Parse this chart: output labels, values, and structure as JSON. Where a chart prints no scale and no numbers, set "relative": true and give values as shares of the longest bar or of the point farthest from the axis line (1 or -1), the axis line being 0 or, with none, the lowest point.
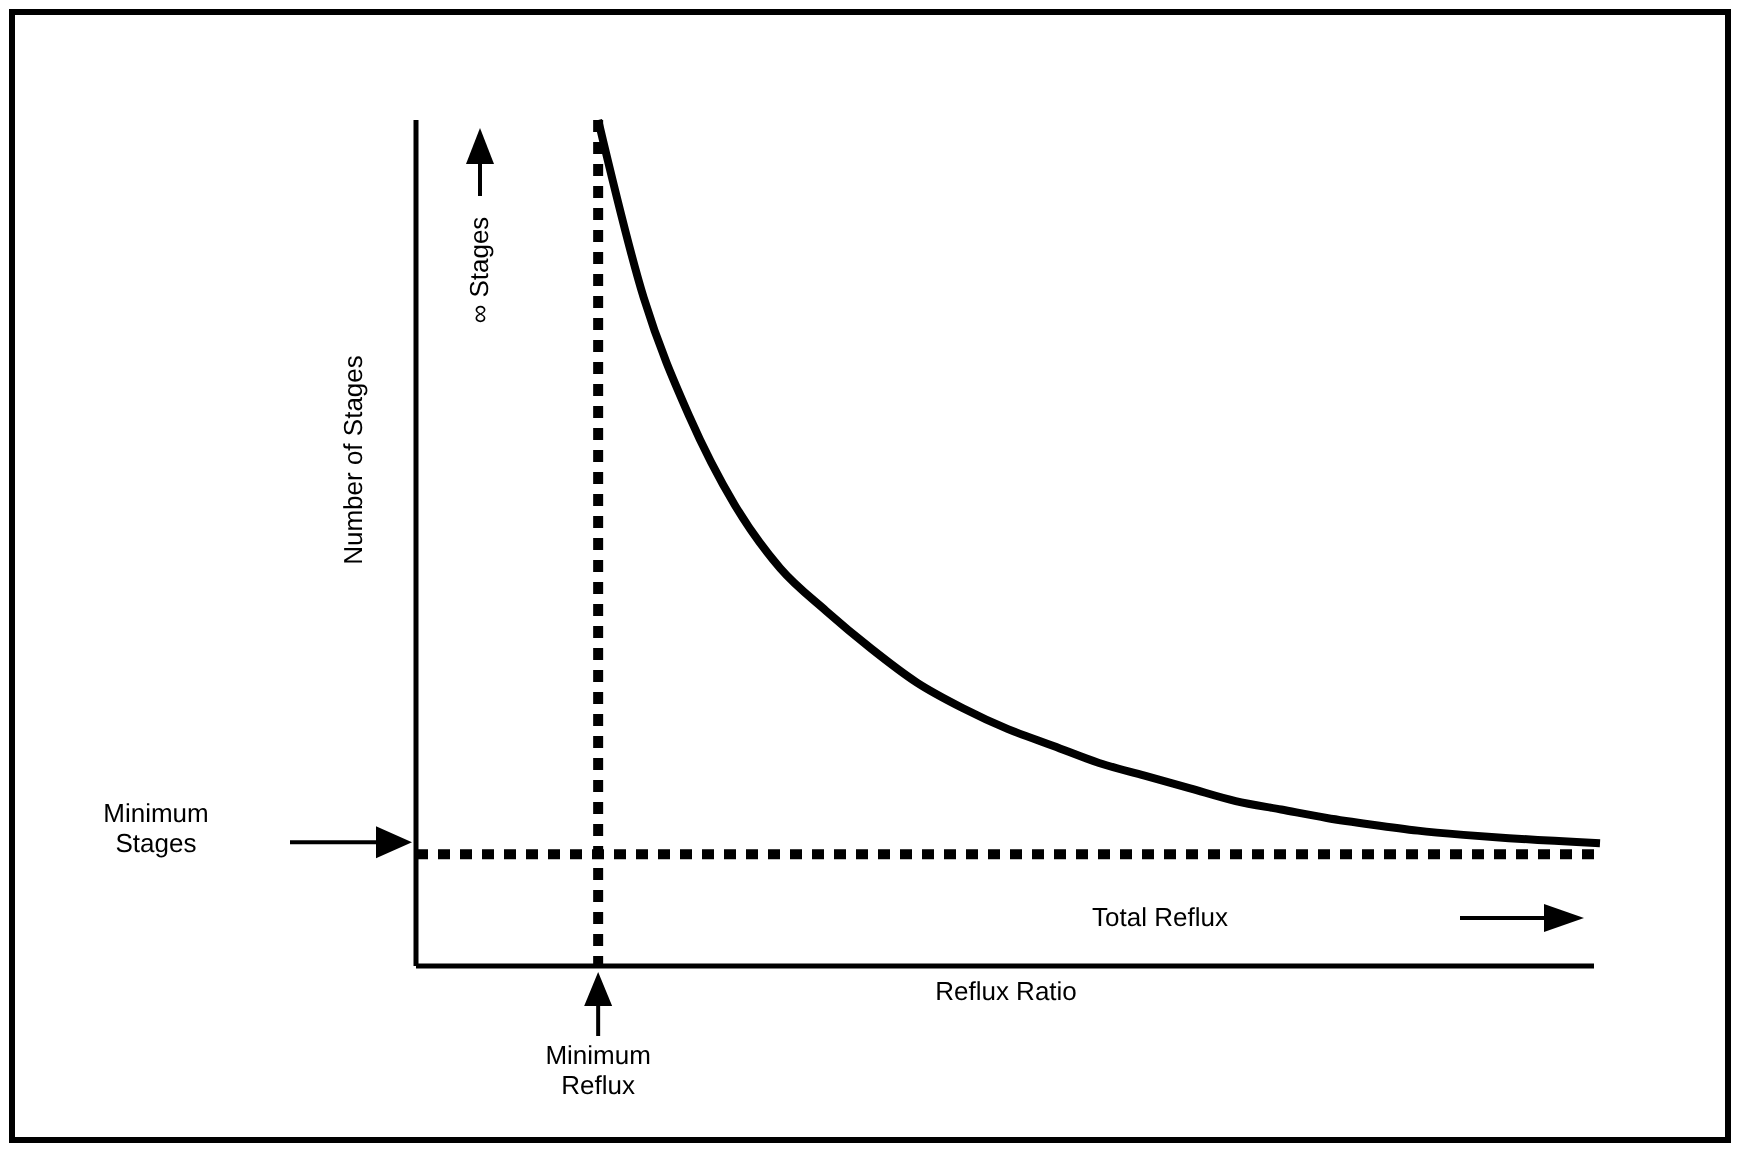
{
  "chart_data": {
    "type": "line",
    "relative": true,
    "xlabel": "Reflux Ratio",
    "ylabel": "Number of Stages",
    "categories": [
      null,
      null,
      null,
      null,
      null,
      null,
      null,
      null,
      null,
      null,
      null,
      null,
      null,
      null,
      null,
      null,
      null,
      null,
      null,
      null,
      null,
      null,
      null,
      null,
      null,
      null,
      null
    ],
    "series": [
      {
        "color": "#000000",
        "values": [
          null,
          null,
          null,
          null,
          1.0,
          0.79,
          0.65,
          0.545,
          0.47,
          0.42,
          0.375,
          0.335,
          0.305,
          0.28,
          0.26,
          0.24,
          0.225,
          0.21,
          0.195,
          0.185,
          0.175,
          0.167,
          0.16,
          0.155,
          0.151,
          0.148,
          0.145
        ]
      }
    ],
    "marker": "none",
    "line_style": "solid",
    "ref_lines": [
      {
        "axis": "y",
        "value": 0.132,
        "label": "Minimum Stages",
        "color": "#000000",
        "line_style": "dotted"
      }
    ],
    "annotations": [
      "∞ Stages",
      "Total Reflux",
      "Minimum Reflux"
    ]
  }
}
